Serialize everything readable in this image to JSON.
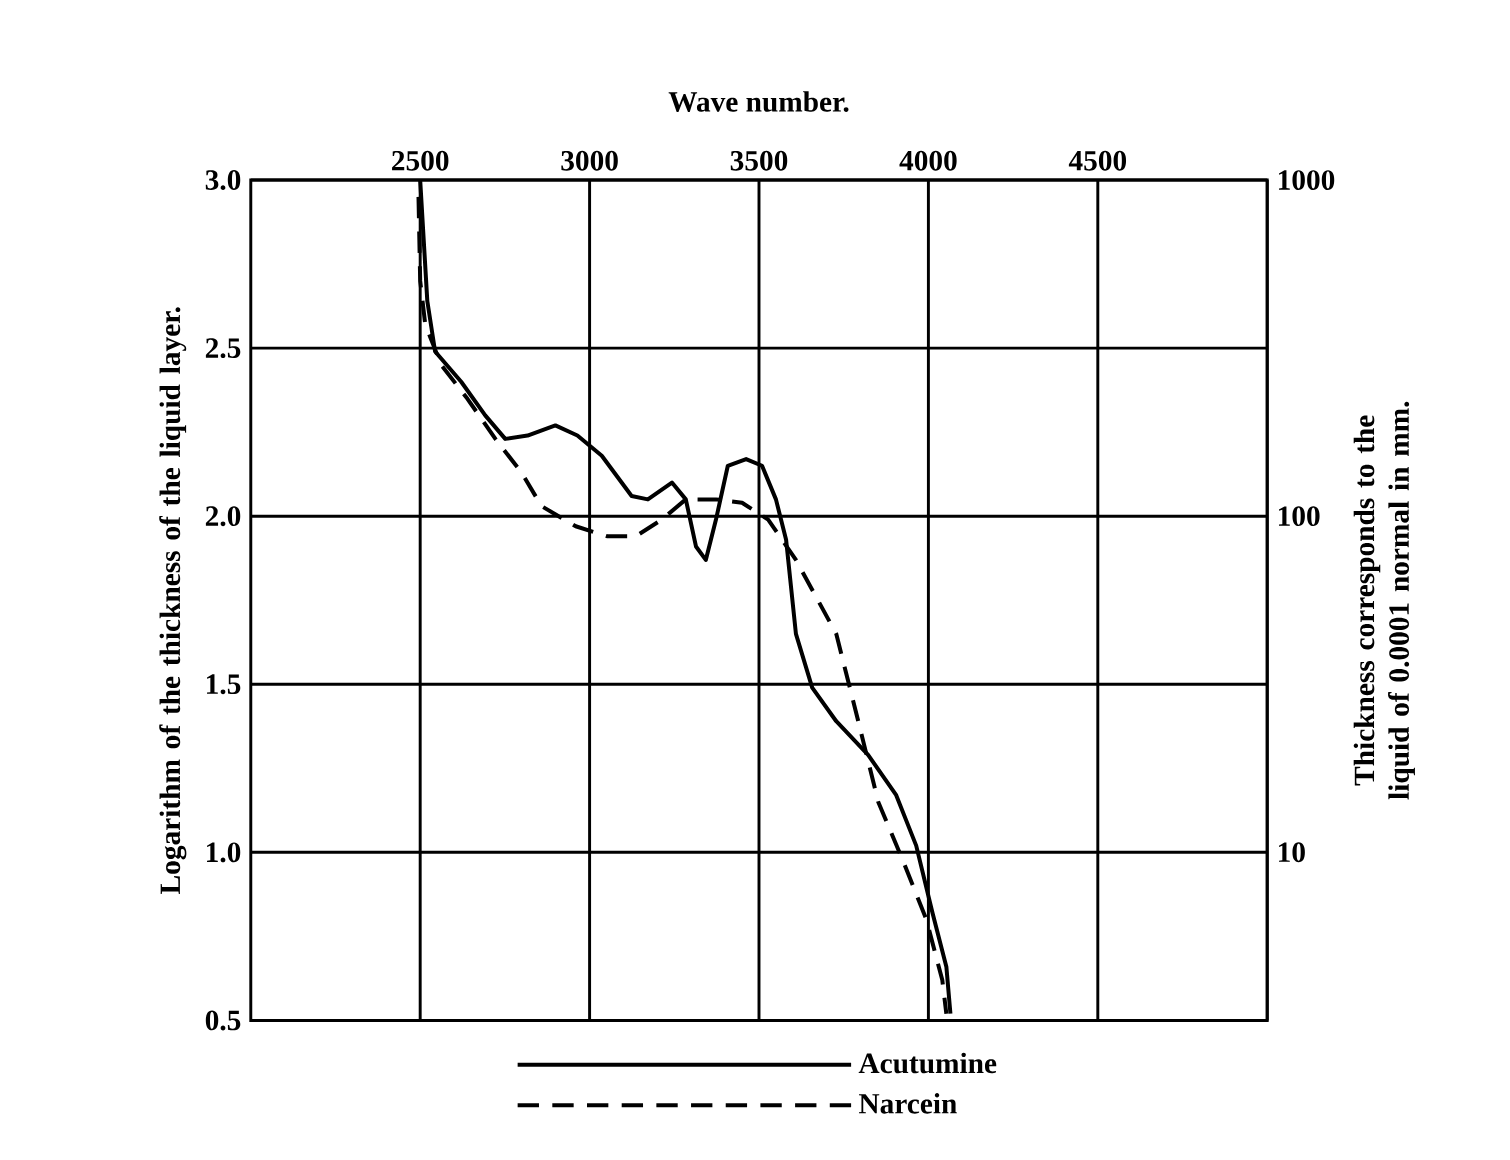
{
  "chart_data": {
    "type": "line",
    "xlabel": "Wave number.",
    "ylabel": "Logarithm of the thickness of the liquid layer.",
    "y2label": "Thickness corresponds to the liquid of 0.0001 normal in mm.",
    "xlim": [
      2000,
      5000
    ],
    "xticks": [
      2500,
      3000,
      3500,
      4000,
      4500
    ],
    "ylim": [
      0.5,
      3.0
    ],
    "yticks": [
      {
        "value": 0.5,
        "label": "0.5"
      },
      {
        "value": 1.0,
        "label": "1.0"
      },
      {
        "value": 1.5,
        "label": "1.5"
      },
      {
        "value": 2.0,
        "label": "2.0"
      },
      {
        "value": 2.5,
        "label": "2.5"
      },
      {
        "value": 3.0,
        "label": "3.0"
      }
    ],
    "y2lim": [
      3.16,
      1000
    ],
    "y2ticks": [
      10,
      100,
      1000
    ],
    "log": "y2",
    "grid": true,
    "legend": "bottom",
    "series": [
      {
        "name": "Acutumine",
        "color": "#000000",
        "line_style": "solid",
        "x": [
          2500,
          2521,
          2544,
          2621,
          2692,
          2751,
          2817,
          2899,
          2964,
          3036,
          3124,
          3172,
          3243,
          3284,
          3314,
          3343,
          3373,
          3408,
          3462,
          3509,
          3550,
          3580,
          3609,
          3657,
          3728,
          3822,
          3905,
          3964,
          4012,
          4053,
          4065
        ],
        "values": [
          3.0,
          2.64,
          2.49,
          2.4,
          2.3,
          2.23,
          2.24,
          2.27,
          2.24,
          2.18,
          2.06,
          2.05,
          2.1,
          2.05,
          1.91,
          1.87,
          1.99,
          2.15,
          2.17,
          2.15,
          2.05,
          1.93,
          1.65,
          1.49,
          1.39,
          1.29,
          1.17,
          1.02,
          0.82,
          0.66,
          0.52
        ]
      },
      {
        "name": "Narcein",
        "color": "#000000",
        "line_style": "dashed",
        "x": [
          2495,
          2500,
          2515,
          2562,
          2639,
          2722,
          2799,
          2858,
          2959,
          3053,
          3136,
          3213,
          3284,
          3373,
          3450,
          3527,
          3609,
          3728,
          3793,
          3852,
          3923,
          3994,
          4041,
          4053
        ],
        "values": [
          2.95,
          2.7,
          2.57,
          2.45,
          2.35,
          2.23,
          2.13,
          2.03,
          1.97,
          1.94,
          1.94,
          1.99,
          2.05,
          2.05,
          2.04,
          1.99,
          1.87,
          1.65,
          1.39,
          1.15,
          0.98,
          0.8,
          0.62,
          0.52
        ]
      }
    ]
  }
}
